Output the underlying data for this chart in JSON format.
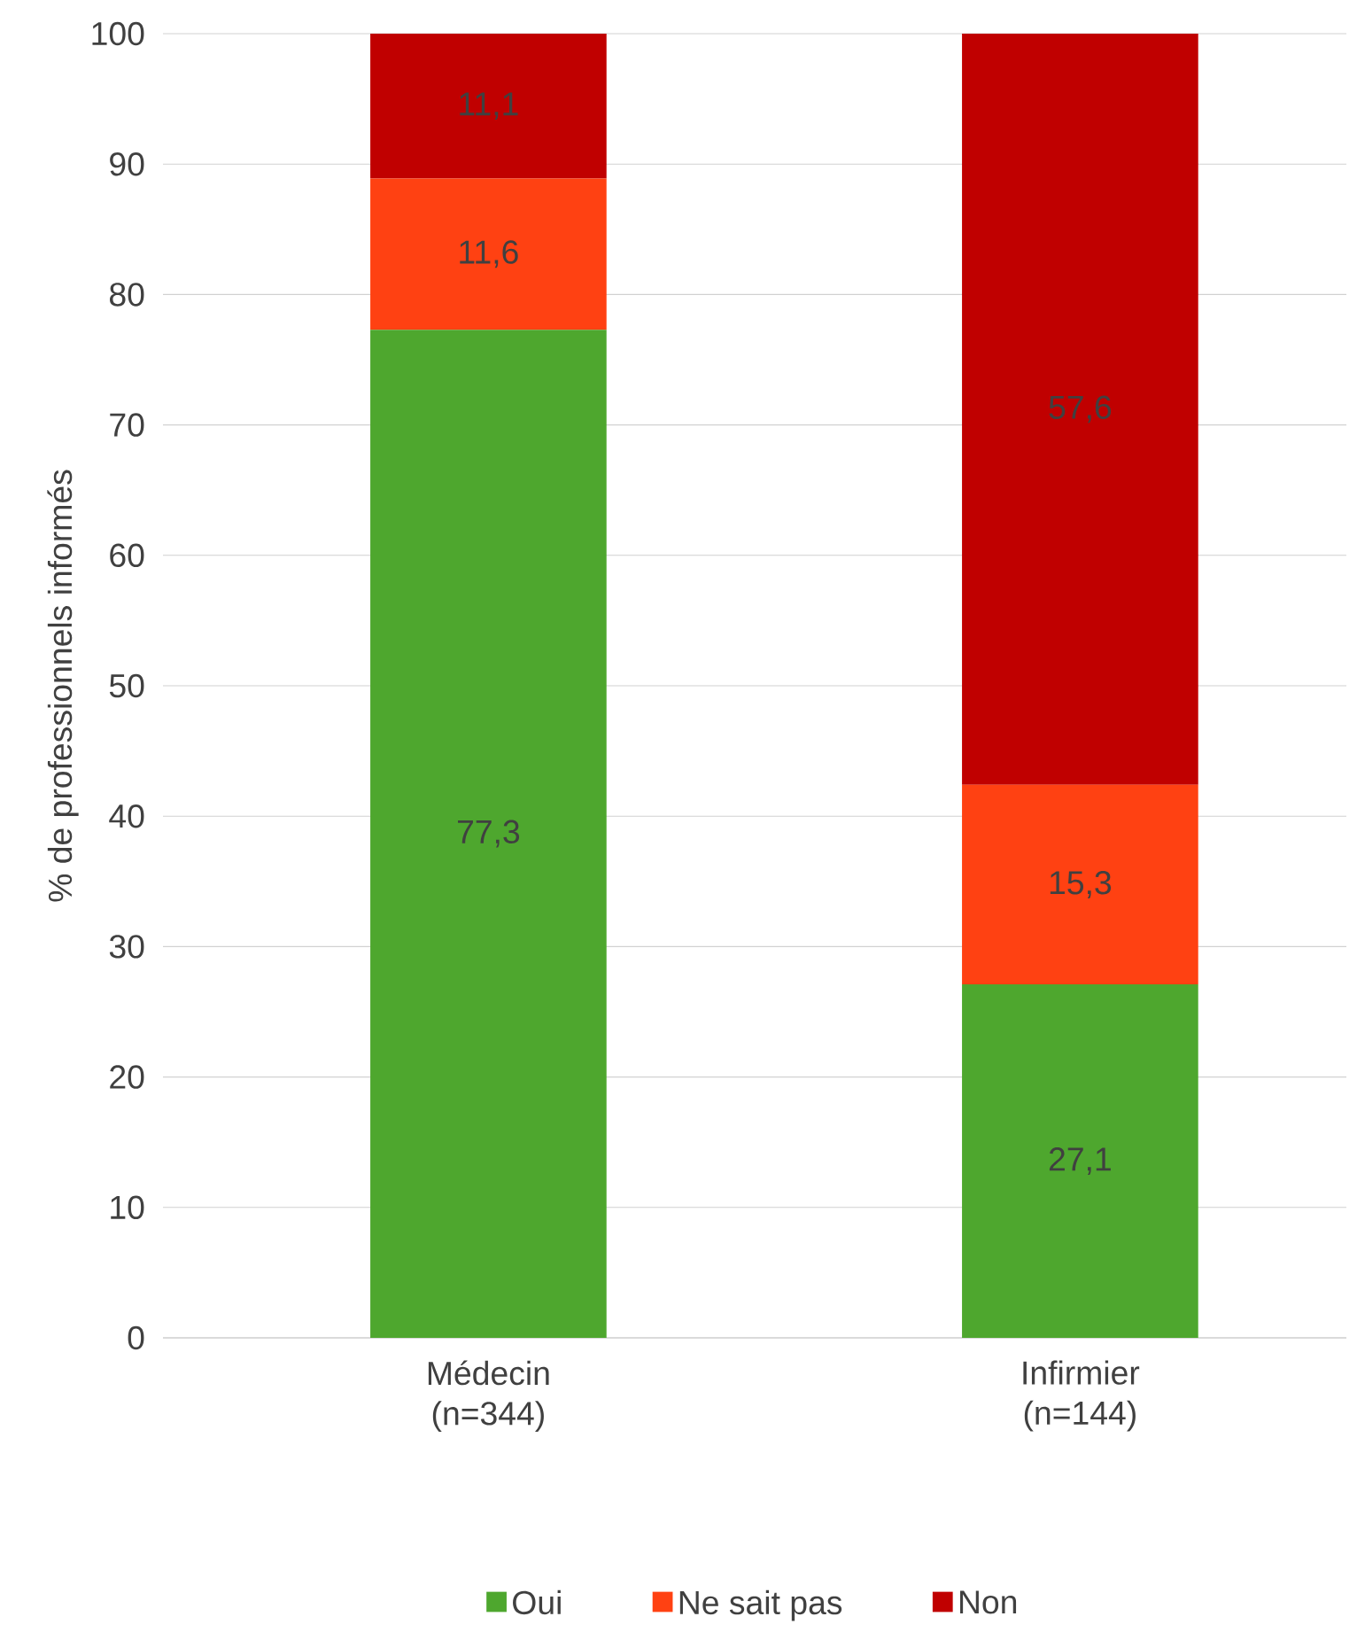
{
  "chart_data": {
    "type": "bar",
    "stacked": true,
    "ylabel": "% de professionnels informés",
    "categories": [
      "Médecin (n=344)",
      "Infirmier (n=144)"
    ],
    "series": [
      {
        "name": "Oui",
        "color": "#4ea72e",
        "values": [
          77.3,
          27.1
        ],
        "value_labels": [
          "77,3",
          "27,1"
        ]
      },
      {
        "name": "Ne sait pas",
        "color": "#ff4112",
        "values": [
          11.6,
          15.3
        ],
        "value_labels": [
          "11,6",
          "15,3"
        ]
      },
      {
        "name": "Non",
        "color": "#c00000",
        "values": [
          11.1,
          57.6
        ],
        "value_labels": [
          "11,1",
          "57,6"
        ]
      }
    ],
    "ylim": [
      0,
      100
    ],
    "yticks": [
      0,
      10,
      20,
      30,
      40,
      50,
      60,
      70,
      80,
      90,
      100
    ],
    "grid": "y",
    "legend": "bottom"
  }
}
